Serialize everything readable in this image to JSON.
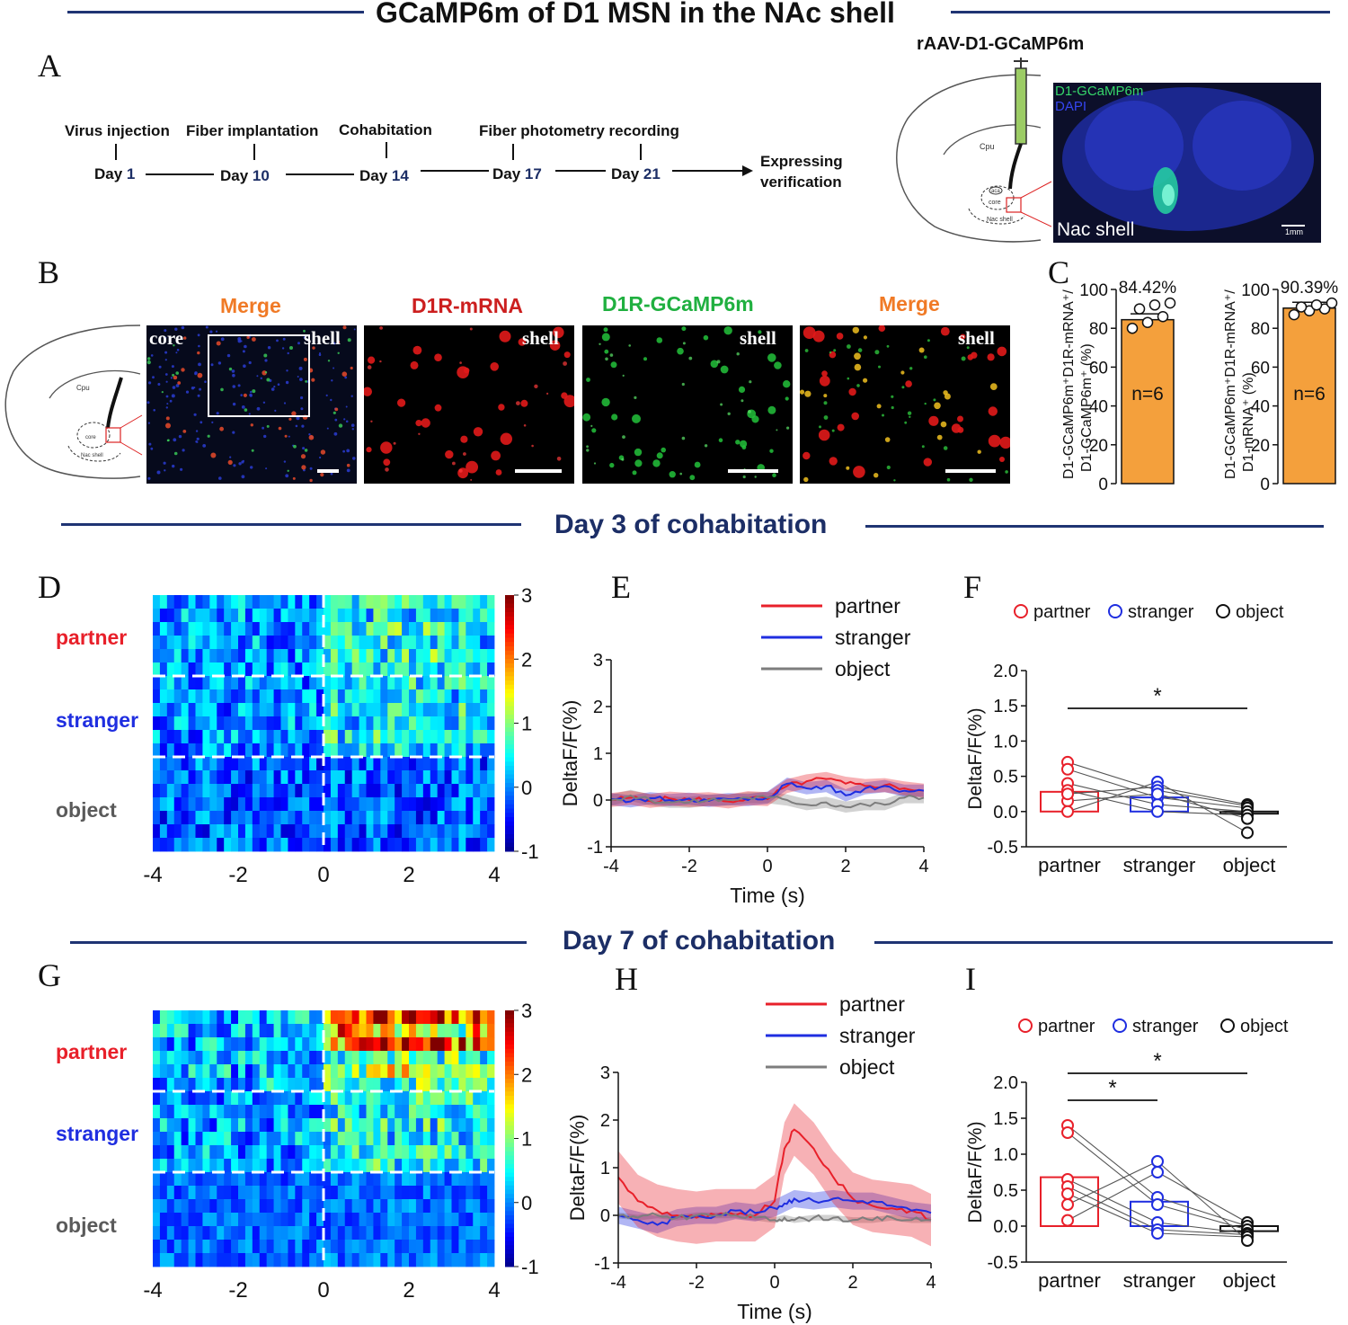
{
  "title": "GCaMP6m of D1 MSN in the NAc shell",
  "colors": {
    "partner": "#e8202a",
    "stranger": "#1f2ee0",
    "object": "#7d7d7d",
    "accent": "#1c2e66",
    "bar": "#f4a03c",
    "mergeTitle": "#f07a26",
    "mrnaTitle": "#cc1f1f",
    "gcampTitle": "#20b040"
  },
  "panelA": {
    "letter": "A",
    "timeline": [
      {
        "label": "Virus injection",
        "day": "Day",
        "num": "1"
      },
      {
        "label": "Fiber implantation",
        "day": "Day",
        "num": "10"
      },
      {
        "label": "Cohabitation",
        "day": "Day",
        "num": "14"
      },
      {
        "label": "Fiber photometry recording",
        "day": "Day",
        "num": "17"
      },
      {
        "label": "",
        "day": "Day",
        "num": "21"
      }
    ],
    "end_label_1": "Expressing",
    "end_label_2": "verification",
    "virus": "rAAV-D1-GCaMP6m",
    "atlas": {
      "cpu": "Cpu",
      "aca": "aca",
      "core": "core",
      "nac_shell": "Nac shell"
    },
    "image": {
      "legend_green": "D1-GCaMP6m",
      "legend_blue": "DAPI",
      "region": "Nac shell",
      "scale": "1mm"
    }
  },
  "panelB": {
    "letter": "B",
    "atlas": {
      "cpu": "Cpu",
      "core": "core",
      "nac_shell": "Nac shell"
    },
    "images": [
      {
        "title": "Merge",
        "tag": "shell",
        "corner": "core"
      },
      {
        "title": "D1R-mRNA",
        "tag": "shell"
      },
      {
        "title": "D1R-GCaMP6m",
        "tag": "shell"
      },
      {
        "title": "Merge",
        "tag": "shell"
      }
    ]
  },
  "panelC": {
    "letter": "C",
    "bars": [
      {
        "ylabel_1": "D1-GCaMP6m⁺D1R-mRNA⁺/",
        "ylabel_2": "D1-GCaMP6m⁺ (%)",
        "percent_label": "84.42%",
        "n_label": "n=6",
        "mean": 84.42,
        "points": [
          80,
          83,
          86,
          90,
          92,
          93
        ]
      },
      {
        "ylabel_1": "D1-GCaMP6m⁺D1R-mRNA⁺/",
        "ylabel_2": "D1-mRNA⁺ (%)",
        "percent_label": "90.39%",
        "n_label": "n=6",
        "mean": 90.39,
        "points": [
          87,
          89,
          90,
          91,
          92,
          93
        ]
      }
    ],
    "yticks": [
      "0",
      "20",
      "40",
      "60",
      "80",
      "100"
    ]
  },
  "day3": {
    "title": "Day 3 of cohabitation",
    "D": {
      "letter": "D",
      "groups": [
        "partner",
        "stranger",
        "object"
      ],
      "xticks": [
        "-4",
        "-2",
        "0",
        "2",
        "4"
      ],
      "cbar_ticks": [
        "3",
        "2",
        "1",
        "0",
        "-1"
      ]
    },
    "E": {
      "letter": "E",
      "legend": [
        "partner",
        "stranger",
        "object"
      ],
      "ylabel": "DeltaF/F(%)",
      "xlabel": "Time (s)",
      "yticks": [
        "3",
        "2",
        "1",
        "0",
        "-1"
      ],
      "xticks": [
        "-4",
        "-2",
        "0",
        "2",
        "4"
      ]
    },
    "F": {
      "letter": "F",
      "legend": [
        "partner",
        "stranger",
        "object"
      ],
      "ylabel": "DeltaF/F(%)",
      "yticks": [
        "2.0",
        "1.5",
        "1.0",
        "0.5",
        "0.0",
        "-0.5"
      ],
      "xcats": [
        "partner",
        "stranger",
        "object"
      ],
      "sig": "*"
    }
  },
  "day7": {
    "title": "Day 7 of cohabitation",
    "G": {
      "letter": "G",
      "groups": [
        "partner",
        "stranger",
        "object"
      ],
      "xticks": [
        "-4",
        "-2",
        "0",
        "2",
        "4"
      ],
      "cbar_ticks": [
        "3",
        "2",
        "1",
        "0",
        "-1"
      ]
    },
    "H": {
      "letter": "H",
      "legend": [
        "partner",
        "stranger",
        "object"
      ],
      "ylabel": "DeltaF/F(%)",
      "xlabel": "Time (s)",
      "yticks": [
        "3",
        "2",
        "1",
        "0",
        "-1"
      ],
      "xticks": [
        "-4",
        "-2",
        "0",
        "2",
        "4"
      ]
    },
    "I": {
      "letter": "I",
      "legend": [
        "partner",
        "stranger",
        "object"
      ],
      "ylabel": "DeltaF/F(%)",
      "yticks": [
        "2.0",
        "1.5",
        "1.0",
        "0.5",
        "0.0",
        "-0.5"
      ],
      "xcats": [
        "partner",
        "stranger",
        "object"
      ],
      "sig1": "*",
      "sig2": "*"
    }
  },
  "chart_data": [
    {
      "type": "bar",
      "title": "Panel C (left)",
      "ylabel": "D1-GCaMP6m+D1R-mRNA+/D1-GCaMP6m+ (%)",
      "ylim": [
        0,
        100
      ],
      "categories": [
        ""
      ],
      "values": [
        84.42
      ],
      "points": [
        80,
        83,
        86,
        90,
        92,
        93
      ]
    },
    {
      "type": "bar",
      "title": "Panel C (right)",
      "ylabel": "D1-GCaMP6m+D1R-mRNA+/D1-mRNA+ (%)",
      "ylim": [
        0,
        100
      ],
      "categories": [
        ""
      ],
      "values": [
        90.39
      ],
      "points": [
        87,
        89,
        90,
        91,
        92,
        93
      ]
    },
    {
      "type": "line",
      "title": "Panel E",
      "xlabel": "Time (s)",
      "ylabel": "DeltaF/F(%)",
      "xlim": [
        -4,
        4
      ],
      "ylim": [
        -1,
        3
      ],
      "x": [
        -4,
        -3.5,
        -3,
        -2.5,
        -2,
        -1.5,
        -1,
        -0.5,
        0,
        0.5,
        1,
        1.5,
        2,
        2.5,
        3,
        3.5,
        4
      ],
      "series": [
        {
          "name": "partner",
          "values": [
            0.0,
            0.05,
            -0.02,
            0.03,
            0.0,
            0.02,
            -0.03,
            0.04,
            0.02,
            0.3,
            0.4,
            0.45,
            0.35,
            0.3,
            0.32,
            0.25,
            0.2
          ],
          "band": 0.15
        },
        {
          "name": "stranger",
          "values": [
            0.02,
            -0.03,
            0.04,
            0.0,
            0.03,
            -0.02,
            0.02,
            0.0,
            0.05,
            0.35,
            0.25,
            0.3,
            0.1,
            0.25,
            0.3,
            0.2,
            0.2
          ],
          "band": 0.13
        },
        {
          "name": "object",
          "values": [
            0.0,
            0.1,
            0.0,
            -0.05,
            -0.05,
            0.0,
            0.0,
            0.05,
            0.05,
            0.0,
            -0.1,
            -0.05,
            -0.15,
            -0.1,
            -0.1,
            0.05,
            0.05
          ],
          "band": 0.12
        }
      ]
    },
    {
      "type": "bar",
      "title": "Panel F",
      "ylabel": "DeltaF/F(%)",
      "ylim": [
        -0.5,
        2.0
      ],
      "categories": [
        "partner",
        "stranger",
        "object"
      ],
      "values": [
        0.28,
        0.2,
        -0.03
      ],
      "points": [
        [
          0.7,
          0.6,
          0.4,
          0.3,
          0.15,
          0.0,
          0.25
        ],
        [
          0.42,
          0.35,
          0.3,
          0.2,
          0.1,
          0.0,
          0.25
        ],
        [
          0.1,
          0.08,
          0.05,
          0.0,
          -0.05,
          -0.1,
          -0.3
        ]
      ],
      "significance": [
        [
          "partner",
          "object",
          "*"
        ]
      ]
    },
    {
      "type": "line",
      "title": "Panel H",
      "xlabel": "Time (s)",
      "ylabel": "DeltaF/F(%)",
      "xlim": [
        -4,
        4
      ],
      "ylim": [
        -1,
        3
      ],
      "x": [
        -4,
        -3.5,
        -3,
        -2.5,
        -2,
        -1.5,
        -1,
        -0.5,
        0,
        0.25,
        0.5,
        1,
        1.5,
        2,
        2.5,
        3,
        3.5,
        4
      ],
      "series": [
        {
          "name": "partner",
          "values": [
            0.8,
            0.3,
            0.1,
            0.0,
            -0.05,
            0.0,
            0.0,
            0.0,
            0.3,
            1.4,
            1.8,
            1.4,
            0.8,
            0.35,
            0.2,
            0.15,
            0.1,
            -0.1
          ],
          "band": 0.55
        },
        {
          "name": "stranger",
          "values": [
            0.0,
            -0.1,
            -0.2,
            -0.05,
            0.0,
            0.0,
            0.1,
            0.05,
            0.15,
            0.25,
            0.35,
            0.3,
            0.35,
            0.3,
            0.3,
            0.2,
            0.1,
            0.05
          ],
          "band": 0.18
        },
        {
          "name": "object",
          "values": [
            0.0,
            -0.05,
            0.0,
            -0.05,
            0.0,
            0.0,
            0.0,
            -0.05,
            -0.1,
            -0.05,
            -0.1,
            -0.05,
            -0.05,
            -0.1,
            -0.1,
            -0.05,
            -0.1,
            -0.1
          ],
          "band": 0.06
        }
      ]
    },
    {
      "type": "bar",
      "title": "Panel I",
      "ylabel": "DeltaF/F(%)",
      "ylim": [
        -0.5,
        2.0
      ],
      "categories": [
        "partner",
        "stranger",
        "object"
      ],
      "values": [
        0.68,
        0.34,
        -0.07
      ],
      "points": [
        [
          1.4,
          1.3,
          0.65,
          0.55,
          0.45,
          0.3,
          0.08
        ],
        [
          0.9,
          0.75,
          0.4,
          0.3,
          0.05,
          -0.05,
          -0.1
        ],
        [
          0.05,
          0.0,
          -0.05,
          -0.1,
          -0.12,
          -0.15,
          -0.2
        ]
      ],
      "significance": [
        [
          "partner",
          "stranger",
          "*"
        ],
        [
          "partner",
          "object",
          "*"
        ]
      ]
    }
  ]
}
